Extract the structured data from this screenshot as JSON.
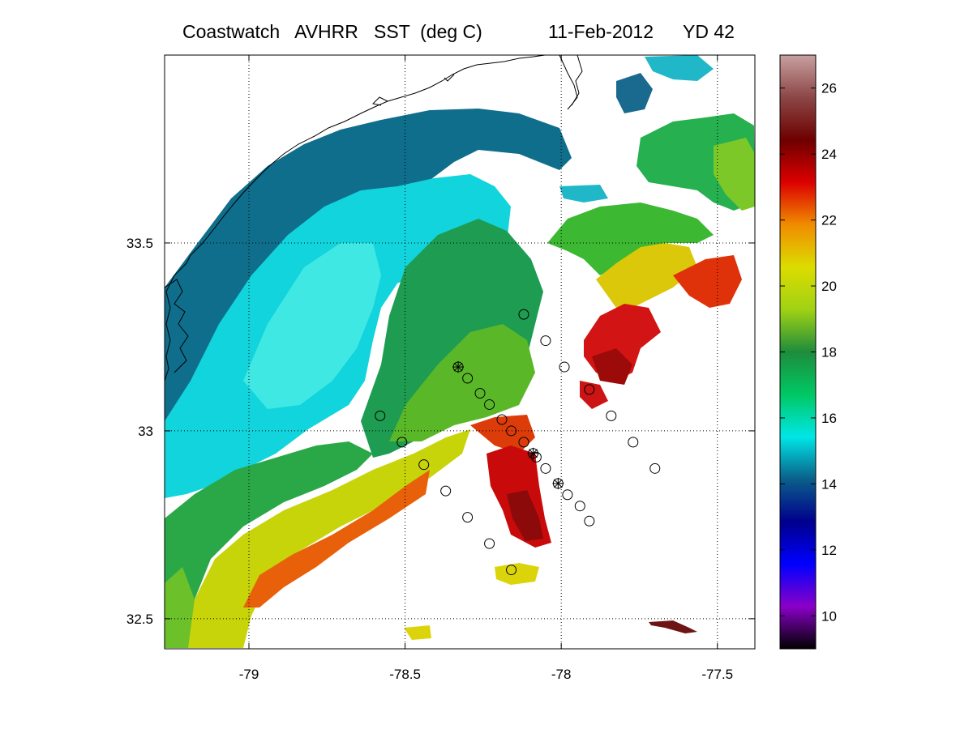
{
  "title": {
    "product": "Coastwatch   AVHRR   SST  (deg C)",
    "date": "11-Feb-2012",
    "yearday": "YD 42"
  },
  "map": {
    "x_ticks": [
      "-79",
      "-78.5",
      "-78",
      "-77.5"
    ],
    "y_ticks": [
      "33.5",
      "33",
      "32.5"
    ],
    "x_range": [
      -79.27,
      -77.38
    ],
    "y_range": [
      32.42,
      34.0
    ],
    "grid": "dotted",
    "markers": [
      {
        "lon": -78.12,
        "lat": 33.31,
        "symbol": "circle"
      },
      {
        "lon": -78.05,
        "lat": 33.24,
        "symbol": "circle"
      },
      {
        "lon": -77.99,
        "lat": 33.17,
        "symbol": "circle"
      },
      {
        "lon": -78.33,
        "lat": 33.17,
        "symbol": "circle-plus"
      },
      {
        "lon": -78.3,
        "lat": 33.14,
        "symbol": "circle"
      },
      {
        "lon": -78.26,
        "lat": 33.1,
        "symbol": "circle"
      },
      {
        "lon": -77.91,
        "lat": 33.11,
        "symbol": "circle"
      },
      {
        "lon": -78.23,
        "lat": 33.07,
        "symbol": "circle"
      },
      {
        "lon": -78.58,
        "lat": 33.04,
        "symbol": "circle"
      },
      {
        "lon": -78.19,
        "lat": 33.03,
        "symbol": "circle"
      },
      {
        "lon": -77.84,
        "lat": 33.04,
        "symbol": "circle"
      },
      {
        "lon": -78.16,
        "lat": 33.0,
        "symbol": "circle"
      },
      {
        "lon": -78.12,
        "lat": 32.97,
        "symbol": "circle"
      },
      {
        "lon": -78.51,
        "lat": 32.97,
        "symbol": "circle"
      },
      {
        "lon": -77.77,
        "lat": 32.97,
        "symbol": "circle"
      },
      {
        "lon": -78.09,
        "lat": 32.94,
        "symbol": "circle-plus"
      },
      {
        "lon": -78.08,
        "lat": 32.93,
        "symbol": "circle"
      },
      {
        "lon": -78.44,
        "lat": 32.91,
        "symbol": "circle"
      },
      {
        "lon": -77.7,
        "lat": 32.9,
        "symbol": "circle"
      },
      {
        "lon": -78.05,
        "lat": 32.9,
        "symbol": "circle"
      },
      {
        "lon": -78.01,
        "lat": 32.86,
        "symbol": "circle-plus"
      },
      {
        "lon": -78.37,
        "lat": 32.84,
        "symbol": "circle"
      },
      {
        "lon": -77.98,
        "lat": 32.83,
        "symbol": "circle"
      },
      {
        "lon": -77.94,
        "lat": 32.8,
        "symbol": "circle"
      },
      {
        "lon": -78.3,
        "lat": 32.77,
        "symbol": "circle"
      },
      {
        "lon": -77.91,
        "lat": 32.76,
        "symbol": "circle"
      },
      {
        "lon": -78.23,
        "lat": 32.7,
        "symbol": "circle"
      },
      {
        "lon": -78.16,
        "lat": 32.63,
        "symbol": "circle"
      }
    ]
  },
  "colorbar": {
    "ticks": [
      "10",
      "12",
      "14",
      "16",
      "18",
      "20",
      "22",
      "24",
      "26"
    ],
    "range": [
      9,
      27
    ],
    "stops": [
      "#000000",
      "#8a00c8",
      "#0000ff",
      "#00008c",
      "#0a5f8a",
      "#00e6e6",
      "#00c864",
      "#1e8c3c",
      "#a0d214",
      "#dcdc00",
      "#f08c00",
      "#dc0000",
      "#6e0000",
      "#8c4646",
      "#c8a0a0"
    ]
  }
}
